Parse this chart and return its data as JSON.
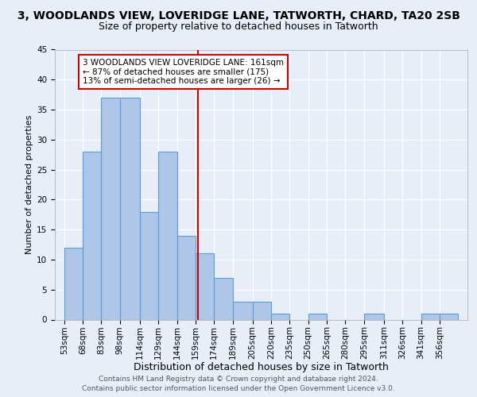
{
  "title": "3, WOODLANDS VIEW, LOVERIDGE LANE, TATWORTH, CHARD, TA20 2SB",
  "subtitle": "Size of property relative to detached houses in Tatworth",
  "xlabel": "Distribution of detached houses by size in Tatworth",
  "ylabel": "Number of detached properties",
  "bin_labels": [
    "53sqm",
    "68sqm",
    "83sqm",
    "98sqm",
    "114sqm",
    "129sqm",
    "144sqm",
    "159sqm",
    "174sqm",
    "189sqm",
    "205sqm",
    "220sqm",
    "235sqm",
    "250sqm",
    "265sqm",
    "280sqm",
    "295sqm",
    "311sqm",
    "326sqm",
    "341sqm",
    "356sqm"
  ],
  "bin_edges": [
    53,
    68,
    83,
    98,
    114,
    129,
    144,
    159,
    174,
    189,
    205,
    220,
    235,
    250,
    265,
    280,
    295,
    311,
    326,
    341,
    356,
    371
  ],
  "counts": [
    12,
    28,
    37,
    37,
    18,
    28,
    14,
    11,
    7,
    3,
    3,
    1,
    0,
    1,
    0,
    0,
    1,
    0,
    0,
    1,
    1
  ],
  "bar_color": "#aec6e8",
  "bar_edge_color": "#5a9fd4",
  "background_color": "#e8eef8",
  "grid_color": "#ffffff",
  "vline_x": 161,
  "vline_color": "#cc0000",
  "annotation_text": "3 WOODLANDS VIEW LOVERIDGE LANE: 161sqm\n← 87% of detached houses are smaller (175)\n13% of semi-detached houses are larger (26) →",
  "annotation_box_color": "#ffffff",
  "annotation_box_edge": "#cc0000",
  "footer_line1": "Contains HM Land Registry data © Crown copyright and database right 2024.",
  "footer_line2": "Contains public sector information licensed under the Open Government Licence v3.0.",
  "ylim": [
    0,
    45
  ],
  "title_fontsize": 10,
  "subtitle_fontsize": 9,
  "xlabel_fontsize": 9,
  "ylabel_fontsize": 8,
  "tick_fontsize": 7.5,
  "footer_fontsize": 6.5,
  "annotation_fontsize": 7.5
}
